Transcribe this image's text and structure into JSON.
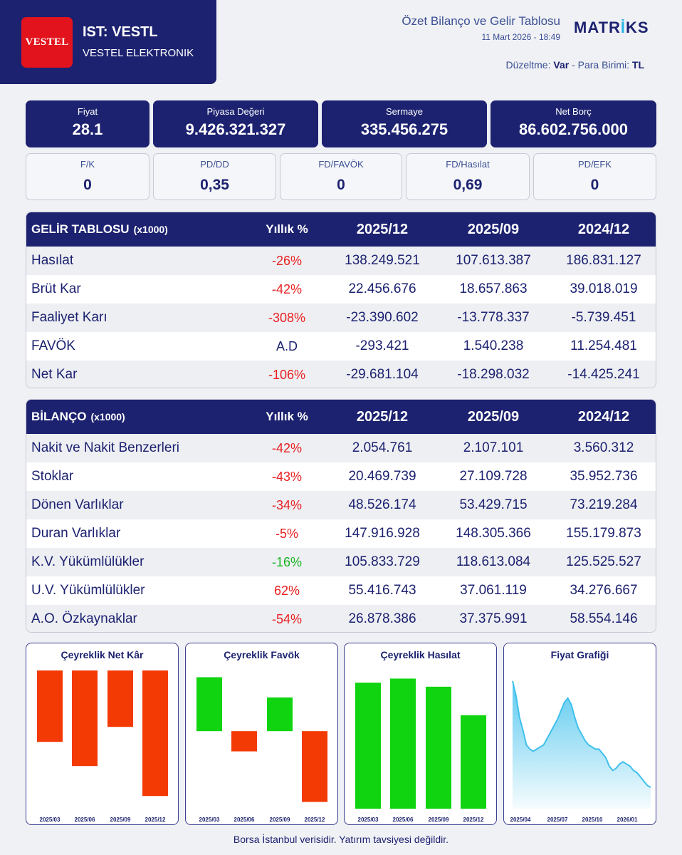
{
  "header": {
    "logo_text": "VESTEL",
    "ticker": "IST: VESTL",
    "company": "VESTEL ELEKTRONIK",
    "report_title": "Özet Bilanço ve Gelir Tablosu",
    "report_date": "11 Mart 2026 - 18:49",
    "brand_pre": "MATR",
    "brand_tick": "İ",
    "brand_post": "KS",
    "adjust_label": "Düzeltme:",
    "adjust_value": "Var",
    "sep": "-",
    "currency_label": "Para Birimi:",
    "currency_value": "TL"
  },
  "metrics": [
    {
      "label": "Fiyat",
      "value": "28.1"
    },
    {
      "label": "Piyasa Değeri",
      "value": "9.426.321.327"
    },
    {
      "label": "Sermaye",
      "value": "335.456.275"
    },
    {
      "label": "Net Borç",
      "value": "86.602.756.000"
    }
  ],
  "ratios": [
    {
      "label": "F/K",
      "value": "0"
    },
    {
      "label": "PD/DD",
      "value": "0,35"
    },
    {
      "label": "FD/FAVÖK",
      "value": "0"
    },
    {
      "label": "FD/Hasılat",
      "value": "0,69"
    },
    {
      "label": "PD/EFK",
      "value": "0"
    }
  ],
  "income": {
    "title": "GELİR TABLOSU",
    "unit": "(x1000)",
    "pct_header": "Yıllık %",
    "periods": [
      "2025/12",
      "2025/09",
      "2024/12"
    ],
    "rows": [
      {
        "name": "Hasılat",
        "pct": "-26%",
        "a": "138.249.521",
        "b": "107.613.387",
        "c": "186.831.127"
      },
      {
        "name": "Brüt Kar",
        "pct": "-42%",
        "a": "22.456.676",
        "b": "18.657.863",
        "c": "39.018.019"
      },
      {
        "name": "Faaliyet Karı",
        "pct": "-308%",
        "a": "-23.390.602",
        "b": "-13.778.337",
        "c": "-5.739.451"
      },
      {
        "name": "FAVÖK",
        "pct": "A.D",
        "a": "-293.421",
        "b": "1.540.238",
        "c": "11.254.481"
      },
      {
        "name": "Net Kar",
        "pct": "-106%",
        "a": "-29.681.104",
        "b": "-18.298.032",
        "c": "-14.425.241"
      }
    ]
  },
  "balance": {
    "title": "BİLANÇO",
    "unit": "(x1000)",
    "pct_header": "Yıllık %",
    "periods": [
      "2025/12",
      "2025/09",
      "2024/12"
    ],
    "rows": [
      {
        "name": "Nakit ve Nakit Benzerleri",
        "pct": "-42%",
        "a": "2.054.761",
        "b": "2.107.101",
        "c": "3.560.312"
      },
      {
        "name": "Stoklar",
        "pct": "-43%",
        "a": "20.469.739",
        "b": "27.109.728",
        "c": "35.952.736"
      },
      {
        "name": "Dönen Varlıklar",
        "pct": "-34%",
        "a": "48.526.174",
        "b": "53.429.715",
        "c": "73.219.284"
      },
      {
        "name": "Duran Varlıklar",
        "pct": "-5%",
        "a": "147.916.928",
        "b": "148.305.366",
        "c": "155.179.873"
      },
      {
        "name": "K.V. Yükümlülükler",
        "pct": "-16%",
        "a": "105.833.729",
        "b": "118.613.084",
        "c": "125.525.527"
      },
      {
        "name": "U.V. Yükümlülükler",
        "pct": "62%",
        "a": "55.416.743",
        "b": "37.061.119",
        "c": "34.276.667"
      },
      {
        "name": "A.O. Özkaynaklar",
        "pct": "-54%",
        "a": "26.878.386",
        "b": "37.375.991",
        "c": "58.554.146"
      }
    ]
  },
  "colors": {
    "navy": "#1c2270",
    "red": "#f33a05",
    "green": "#10d410",
    "line": "#3fc0ec"
  },
  "chart_data": [
    {
      "type": "bar",
      "title": "Çeyreklik Net Kâr",
      "categories": [
        "2025/03",
        "2025/06",
        "2025/09",
        "2025/12"
      ],
      "values": [
        -6.2,
        -8.3,
        -4.9,
        -10.9
      ],
      "ylim": [
        -12,
        0
      ]
    },
    {
      "type": "bar",
      "title": "Çeyreklik Favök",
      "categories": [
        "2025/03",
        "2025/06",
        "2025/09",
        "2025/12"
      ],
      "values": [
        1.6,
        -0.6,
        1.0,
        -2.1
      ],
      "ylim": [
        -2.3,
        1.8
      ]
    },
    {
      "type": "bar",
      "title": "Çeyreklik Hasılat",
      "categories": [
        "2025/03",
        "2025/06",
        "2025/09",
        "2025/12"
      ],
      "values": [
        31,
        32,
        30,
        23
      ],
      "ylim": [
        0,
        34
      ]
    },
    {
      "type": "area",
      "title": "Fiyat Grafiği",
      "categories": [
        "2025/04",
        "2025/07",
        "2025/10",
        "2026/01"
      ],
      "x": [
        0,
        1,
        2,
        3,
        4,
        5,
        6,
        7,
        8,
        9,
        10,
        11,
        12,
        13,
        14,
        15,
        16,
        17,
        18,
        19,
        20,
        21,
        22,
        23,
        24,
        25,
        26,
        27,
        28,
        29,
        30,
        31,
        32,
        33,
        34,
        35,
        36,
        37,
        38,
        39,
        40
      ],
      "values": [
        70,
        63,
        53,
        47,
        40,
        38,
        37,
        38,
        39,
        40,
        43,
        46,
        49,
        52,
        56,
        60,
        62,
        59,
        53,
        48,
        45,
        42,
        40,
        39,
        38,
        38,
        36,
        34,
        30,
        28,
        29,
        31,
        32,
        31,
        30,
        28,
        27,
        25,
        23,
        21,
        20
      ],
      "ylim": [
        10,
        75
      ]
    }
  ],
  "footer": "Borsa İstanbul verisidir. Yatırım tavsiyesi değildir."
}
